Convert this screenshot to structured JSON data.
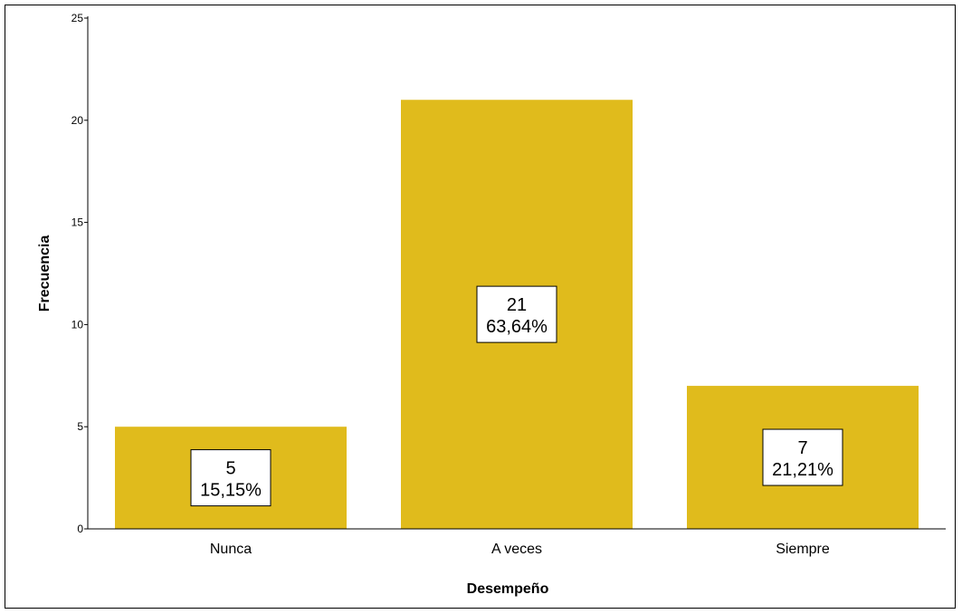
{
  "chart_data": {
    "type": "bar",
    "categories": [
      "Nunca",
      "A veces",
      "Siempre"
    ],
    "values": [
      5,
      21,
      7
    ],
    "percent_labels": [
      "15,15%",
      "63,64%",
      "21,21%"
    ],
    "title": "",
    "xlabel": "Desempeño",
    "ylabel": "Frecuencia",
    "ylim": [
      0,
      25
    ],
    "yticks": [
      0,
      5,
      10,
      15,
      20,
      25
    ],
    "grid": false,
    "legend": "none",
    "bar_color": "#E0BB1C"
  }
}
